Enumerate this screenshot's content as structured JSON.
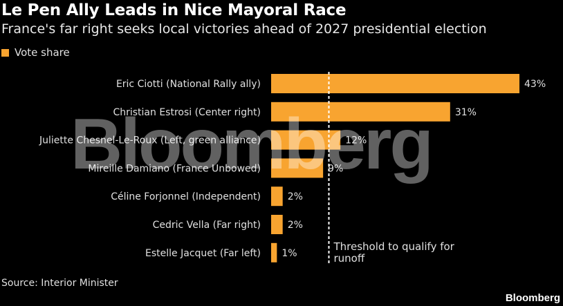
{
  "title": "Le Pen Ally Leads in Nice Mayoral Race",
  "subtitle": "France's far right seeks local victories ahead of 2027 presidential election",
  "source": "Source: Interior Minister",
  "brand": "Bloomberg",
  "watermark": "Bloomberg",
  "colors": {
    "bar": "#f8a430",
    "background": "#000000",
    "text": "#e0e0e0"
  },
  "chart_data": {
    "type": "bar",
    "orientation": "horizontal",
    "categories": [
      "Eric Ciotti (National Rally ally)",
      "Christian Estrosi (Center right)",
      "Juliette Chesnel-Le-Roux (Left, green alliance)",
      "Mireille Damiano (France Unbowed)",
      "Céline Forjonnel (Independent)",
      "Cedric Vella (Far right)",
      "Estelle Jacquet (Far left)"
    ],
    "series": [
      {
        "name": "Vote share",
        "values": [
          43,
          31,
          12,
          9,
          2,
          2,
          1
        ]
      }
    ],
    "value_labels": [
      "43%",
      "31%",
      "12%",
      "9%",
      "2%",
      "2%",
      "1%"
    ],
    "xlim": [
      0,
      43
    ],
    "legend": "top-left",
    "grid": false,
    "annotations": [
      {
        "type": "vline",
        "x": 10,
        "style": "dashed",
        "label": "Threshold to qualify for runoff",
        "label_lines": [
          "Threshold to qualify for",
          "runoff"
        ]
      }
    ]
  }
}
